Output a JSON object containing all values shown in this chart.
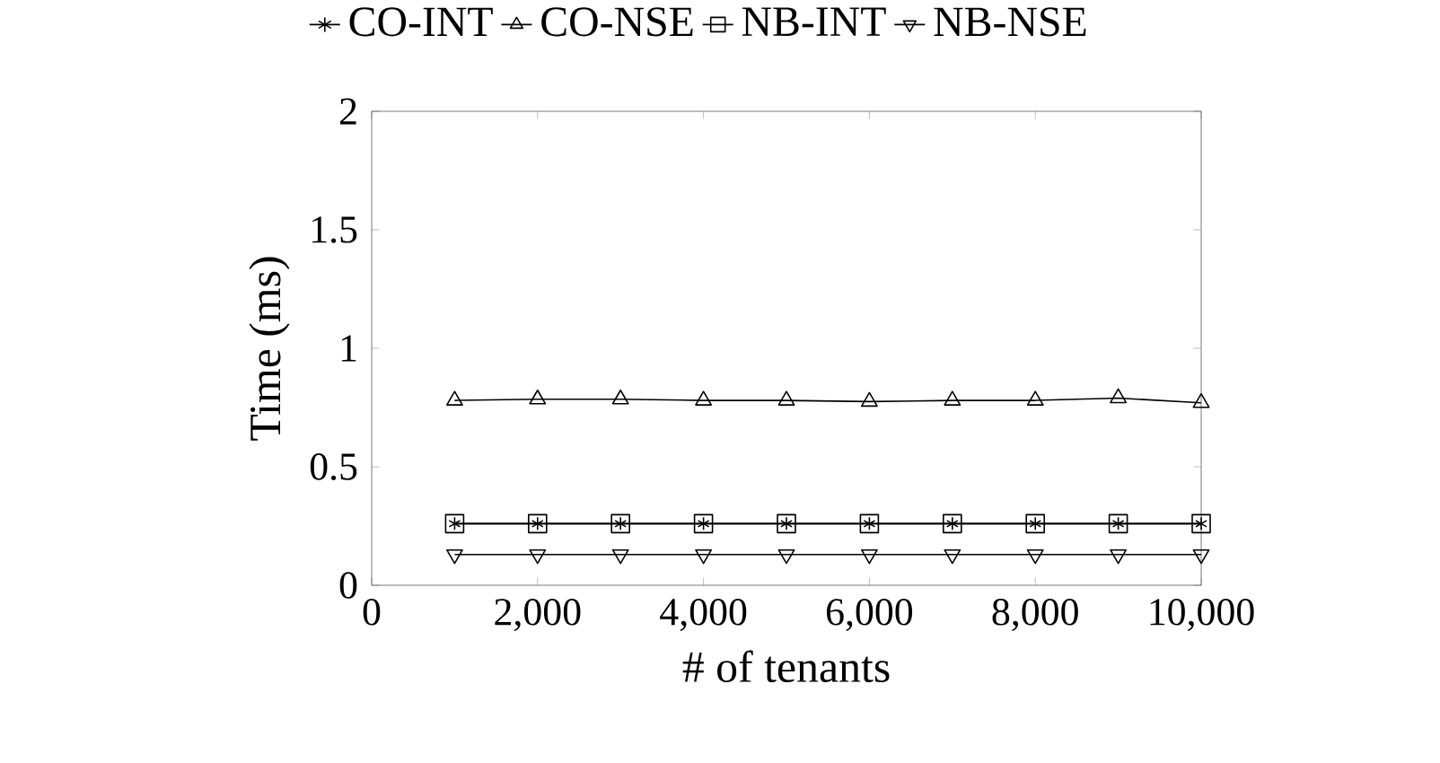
{
  "chart_data": {
    "type": "line",
    "xlabel": "# of tenants",
    "ylabel": "Time (ms)",
    "x": [
      1000,
      2000,
      3000,
      4000,
      5000,
      6000,
      7000,
      8000,
      9000,
      10000
    ],
    "series": [
      {
        "name": "CO-INT",
        "color": "#000000",
        "marker": "cross",
        "values": [
          0.26,
          0.26,
          0.26,
          0.26,
          0.26,
          0.26,
          0.26,
          0.26,
          0.26,
          0.26
        ]
      },
      {
        "name": "CO-NSE",
        "color": "#000000",
        "marker": "triangle",
        "values": [
          0.78,
          0.785,
          0.785,
          0.78,
          0.78,
          0.775,
          0.78,
          0.78,
          0.79,
          0.77
        ]
      },
      {
        "name": "NB-INT",
        "color": "#000000",
        "marker": "square",
        "values": [
          0.26,
          0.26,
          0.26,
          0.26,
          0.26,
          0.26,
          0.26,
          0.26,
          0.26,
          0.26
        ]
      },
      {
        "name": "NB-NSE",
        "color": "#000000",
        "marker": "triangle_down",
        "values": [
          0.13,
          0.13,
          0.13,
          0.13,
          0.13,
          0.13,
          0.13,
          0.13,
          0.13,
          0.13
        ]
      }
    ],
    "xlim": [
      0,
      10000
    ],
    "ylim": [
      0,
      2
    ],
    "xticks": [
      0,
      {
        "value": 2000,
        "label": "2,000"
      },
      {
        "value": 4000,
        "label": "4,000"
      },
      {
        "value": 6000,
        "label": "6,000"
      },
      {
        "value": 8000,
        "label": "8,000"
      },
      {
        "value": 10000,
        "label": "10,000"
      }
    ],
    "yticks": [
      0,
      0.5,
      1,
      1.5,
      2
    ],
    "grid": false,
    "legend": "top",
    "line_style": "solid"
  }
}
